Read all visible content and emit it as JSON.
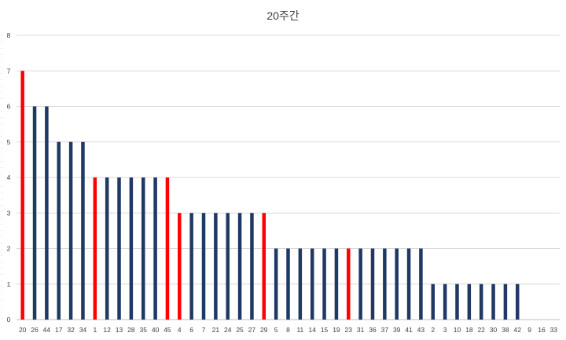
{
  "chart_data": {
    "type": "bar",
    "title": "20주간",
    "xlabel": "",
    "ylabel": "",
    "ylim": [
      0,
      8
    ],
    "yticks": [
      0,
      1,
      2,
      3,
      4,
      5,
      6,
      7,
      8
    ],
    "grid": true,
    "legend": "none",
    "categories": [
      "20",
      "26",
      "44",
      "17",
      "32",
      "34",
      "1",
      "12",
      "13",
      "28",
      "35",
      "40",
      "45",
      "4",
      "6",
      "7",
      "21",
      "24",
      "25",
      "27",
      "29",
      "5",
      "8",
      "11",
      "14",
      "15",
      "19",
      "23",
      "31",
      "36",
      "37",
      "39",
      "41",
      "43",
      "2",
      "3",
      "10",
      "18",
      "22",
      "30",
      "38",
      "42",
      "9",
      "16",
      "33"
    ],
    "values": [
      7,
      6,
      6,
      5,
      5,
      5,
      4,
      4,
      4,
      4,
      4,
      4,
      4,
      3,
      3,
      3,
      3,
      3,
      3,
      3,
      3,
      2,
      2,
      2,
      2,
      2,
      2,
      2,
      2,
      2,
      2,
      2,
      2,
      2,
      1,
      1,
      1,
      1,
      1,
      1,
      1,
      1,
      0,
      0,
      0
    ],
    "highlighted": [
      "20",
      "1",
      "45",
      "4",
      "29",
      "23"
    ],
    "colors": {
      "default": "#1f3864",
      "highlight": "#ff0000"
    }
  }
}
